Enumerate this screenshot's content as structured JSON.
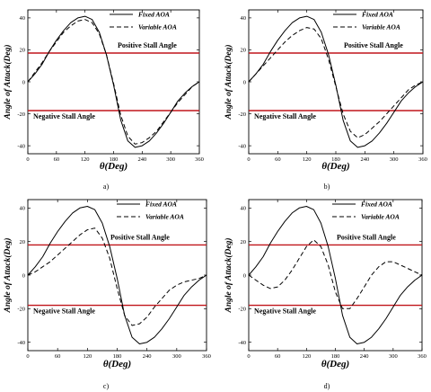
{
  "chart_data": [
    {
      "type": "line",
      "caption": "a)",
      "xlabel": "θ(Deg)",
      "ylabel": "Angle of Attack(Deg)",
      "xlim": [
        0,
        360
      ],
      "ylim": [
        -45,
        45
      ],
      "xticks": [
        0,
        60,
        120,
        180,
        240,
        300,
        360
      ],
      "yticks": [
        -40,
        -20,
        0,
        20,
        40
      ],
      "legend_position": "top-right",
      "series": [
        {
          "name": "Fixed AOA",
          "style": "solid",
          "x": [
            0,
            15,
            30,
            45,
            60,
            75,
            90,
            105,
            120,
            135,
            150,
            165,
            180,
            195,
            210,
            225,
            240,
            255,
            270,
            285,
            300,
            315,
            330,
            345,
            360
          ],
          "y": [
            0,
            5,
            11,
            19,
            26,
            32,
            37,
            40,
            41,
            39,
            31,
            17,
            -2,
            -24,
            -37,
            -41,
            -40,
            -37,
            -32,
            -26,
            -19,
            -12,
            -7,
            -3,
            0
          ]
        },
        {
          "name": "Variable AOA",
          "style": "dashed",
          "x": [
            0,
            15,
            30,
            45,
            60,
            75,
            90,
            105,
            120,
            135,
            150,
            165,
            180,
            195,
            210,
            225,
            240,
            255,
            270,
            285,
            300,
            315,
            330,
            345,
            360
          ],
          "y": [
            0,
            6,
            12,
            19,
            25,
            31,
            35,
            38,
            39,
            37,
            30,
            17,
            -1,
            -21,
            -34,
            -39,
            -38,
            -35,
            -31,
            -25,
            -19,
            -13,
            -8,
            -3,
            0
          ]
        }
      ],
      "reference_lines": [
        {
          "label": "Positive Stall Angle",
          "y": 18,
          "color": "#c0151b"
        },
        {
          "label": "Negative Stall  Angle",
          "y": -18,
          "color": "#c0151b"
        }
      ]
    },
    {
      "type": "line",
      "caption": "b)",
      "xlabel": "θ(Deg)",
      "ylabel": "Angle of Attack(Deg)",
      "xlim": [
        0,
        360
      ],
      "ylim": [
        -45,
        45
      ],
      "xticks": [
        0,
        60,
        120,
        180,
        240,
        300,
        360
      ],
      "yticks": [
        -40,
        -20,
        0,
        20,
        40
      ],
      "legend_position": "top-right",
      "series": [
        {
          "name": "Fixed AOA",
          "style": "solid",
          "x": [
            0,
            15,
            30,
            45,
            60,
            75,
            90,
            105,
            120,
            135,
            150,
            165,
            180,
            195,
            210,
            225,
            240,
            255,
            270,
            285,
            300,
            315,
            330,
            345,
            360
          ],
          "y": [
            0,
            5,
            11,
            19,
            26,
            32,
            37,
            40,
            41,
            39,
            31,
            17,
            -2,
            -24,
            -37,
            -41,
            -40,
            -37,
            -32,
            -26,
            -19,
            -12,
            -7,
            -3,
            0
          ]
        },
        {
          "name": "Variable AOA",
          "style": "dashed",
          "x": [
            0,
            15,
            30,
            45,
            60,
            75,
            90,
            105,
            120,
            135,
            150,
            165,
            180,
            195,
            210,
            225,
            240,
            255,
            270,
            285,
            300,
            315,
            330,
            345,
            360
          ],
          "y": [
            0,
            5,
            10,
            15,
            20,
            25,
            29,
            32,
            34,
            33,
            27,
            14,
            -3,
            -20,
            -31,
            -35,
            -33,
            -29,
            -25,
            -20,
            -15,
            -10,
            -5,
            -2,
            0
          ]
        }
      ],
      "reference_lines": [
        {
          "label": "Positive Stall  Angle",
          "y": 18,
          "color": "#c0151b"
        },
        {
          "label": "Negative Stall  Angle",
          "y": -18,
          "color": "#c0151b"
        }
      ]
    },
    {
      "type": "line",
      "caption": "c)",
      "xlabel": "θ(Deg)",
      "ylabel": "Angle of Attack(Deg)",
      "xlim": [
        0,
        360
      ],
      "ylim": [
        -45,
        45
      ],
      "xticks": [
        0,
        60,
        120,
        180,
        240,
        300,
        360
      ],
      "yticks": [
        -40,
        -20,
        0,
        20,
        40
      ],
      "legend_position": "top-right",
      "series": [
        {
          "name": "Fixed AOA",
          "style": "solid",
          "x": [
            0,
            15,
            30,
            45,
            60,
            75,
            90,
            105,
            120,
            135,
            150,
            165,
            180,
            195,
            210,
            225,
            240,
            255,
            270,
            285,
            300,
            315,
            330,
            345,
            360
          ],
          "y": [
            0,
            5,
            11,
            19,
            26,
            32,
            37,
            40,
            41,
            39,
            31,
            17,
            -2,
            -24,
            -37,
            -41,
            -40,
            -37,
            -32,
            -26,
            -19,
            -12,
            -7,
            -3,
            0
          ]
        },
        {
          "name": "Variable AOA",
          "style": "dashed",
          "x": [
            0,
            15,
            30,
            45,
            60,
            75,
            90,
            105,
            120,
            135,
            150,
            165,
            180,
            195,
            210,
            225,
            240,
            255,
            270,
            285,
            300,
            315,
            330,
            345,
            360
          ],
          "y": [
            0,
            2,
            5,
            8,
            12,
            16,
            20,
            24,
            27,
            28,
            22,
            10,
            -8,
            -24,
            -30,
            -29,
            -25,
            -19,
            -14,
            -9,
            -6,
            -4,
            -3,
            -2,
            0
          ]
        }
      ],
      "reference_lines": [
        {
          "label": "Positive Stall  Angle",
          "y": 18,
          "color": "#c0151b"
        },
        {
          "label": "Negative Stall  Angle",
          "y": -18,
          "color": "#c0151b"
        }
      ]
    },
    {
      "type": "line",
      "caption": "d)",
      "xlabel": "θ(Deg)",
      "ylabel": "Angle of Attack(Deg)",
      "xlim": [
        0,
        360
      ],
      "ylim": [
        -45,
        45
      ],
      "xticks": [
        0,
        60,
        120,
        180,
        240,
        300,
        360
      ],
      "yticks": [
        -40,
        -20,
        0,
        20,
        40
      ],
      "legend_position": "top-right",
      "series": [
        {
          "name": "Fixed AOA",
          "style": "solid",
          "x": [
            0,
            15,
            30,
            45,
            60,
            75,
            90,
            105,
            120,
            135,
            150,
            165,
            180,
            195,
            210,
            225,
            240,
            255,
            270,
            285,
            300,
            315,
            330,
            345,
            360
          ],
          "y": [
            0,
            5,
            11,
            19,
            26,
            32,
            37,
            40,
            41,
            39,
            31,
            17,
            -2,
            -24,
            -37,
            -41,
            -40,
            -37,
            -32,
            -26,
            -19,
            -12,
            -7,
            -3,
            0
          ]
        },
        {
          "name": "Variable AOA",
          "style": "dashed",
          "x": [
            0,
            15,
            30,
            45,
            60,
            75,
            90,
            105,
            120,
            135,
            150,
            165,
            180,
            195,
            210,
            225,
            240,
            255,
            270,
            285,
            300,
            315,
            330,
            345,
            360
          ],
          "y": [
            0,
            -3,
            -6,
            -8,
            -7,
            -3,
            3,
            10,
            17,
            21,
            17,
            6,
            -10,
            -20,
            -20,
            -14,
            -7,
            0,
            5,
            8,
            8,
            6,
            4,
            2,
            0
          ]
        }
      ],
      "reference_lines": [
        {
          "label": "Positive Stall Angle",
          "y": 18,
          "color": "#c0151b"
        },
        {
          "label": "Negative Stall Angle",
          "y": -18,
          "color": "#c0151b"
        }
      ]
    }
  ]
}
